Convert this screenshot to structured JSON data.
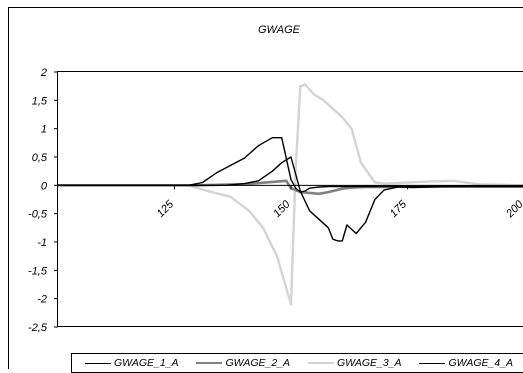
{
  "chart_data": {
    "type": "line",
    "title": "GWAGE",
    "xlabel": "",
    "ylabel": "",
    "xlim": [
      100,
      200
    ],
    "ylim": [
      -2.5,
      2
    ],
    "y_ticks": [
      2,
      1.5,
      1,
      0.5,
      0,
      -0.5,
      -1,
      -1.5,
      -2,
      -2.5
    ],
    "y_tick_labels": [
      "2",
      "1,5",
      "1",
      "0,5",
      "0",
      "-0,5",
      "-1",
      "-1,5",
      "-2",
      "-2,5"
    ],
    "x_ticks": [
      125,
      150,
      175,
      200
    ],
    "x_tick_labels": [
      "125",
      "150",
      "175",
      "200"
    ],
    "grid": false,
    "legend_position": "bottom",
    "series": [
      {
        "name": "GWAGE_1_A",
        "color": "#000000",
        "x": [
          100,
          128,
          131,
          134,
          137,
          140,
          143,
          146,
          148,
          150,
          151,
          152,
          153,
          154,
          156,
          158,
          160,
          163,
          166,
          170,
          175,
          185,
          200
        ],
        "y": [
          0,
          0,
          0.05,
          0.22,
          0.35,
          0.48,
          0.7,
          0.84,
          0.84,
          0.1,
          -0.05,
          -0.12,
          -0.1,
          -0.05,
          -0.03,
          -0.02,
          -0.02,
          -0.02,
          -0.02,
          -0.02,
          -0.02,
          -0.02,
          -0.02
        ]
      },
      {
        "name": "GWAGE_2_A",
        "color": "#808080",
        "x": [
          100,
          130,
          140,
          143,
          146,
          149,
          150,
          152,
          156,
          158,
          161,
          163,
          166,
          170,
          175,
          185,
          200
        ],
        "y": [
          0,
          0,
          0.02,
          0.04,
          0.06,
          0.08,
          -0.05,
          -0.12,
          -0.15,
          -0.12,
          -0.06,
          -0.04,
          -0.03,
          -0.03,
          -0.02,
          -0.02,
          -0.02
        ]
      },
      {
        "name": "GWAGE_3_A",
        "color": "#d4d4d4",
        "x": [
          100,
          128,
          130,
          133,
          137,
          141,
          144,
          147,
          150,
          151,
          152,
          153,
          155,
          157,
          159,
          161,
          163,
          165,
          168,
          170,
          175,
          180,
          185,
          190,
          200
        ],
        "y": [
          0,
          0,
          -0.05,
          -0.12,
          -0.2,
          -0.45,
          -0.75,
          -1.25,
          -2.1,
          0.3,
          1.75,
          1.78,
          1.6,
          1.5,
          1.35,
          1.2,
          1.0,
          0.4,
          0.05,
          0.03,
          0.05,
          0.07,
          0.08,
          0.02,
          0.0
        ]
      },
      {
        "name": "GWAGE_4_A",
        "color": "#000000",
        "x": [
          100,
          136,
          140,
          143,
          146,
          148,
          150,
          152,
          154,
          156,
          158,
          159,
          160,
          161,
          162,
          164,
          166,
          168,
          170,
          173,
          176,
          180,
          185,
          200
        ],
        "y": [
          0,
          0,
          0.03,
          0.08,
          0.25,
          0.4,
          0.5,
          -0.1,
          -0.45,
          -0.6,
          -0.75,
          -0.95,
          -0.98,
          -0.98,
          -0.7,
          -0.85,
          -0.65,
          -0.25,
          -0.08,
          -0.03,
          -0.04,
          -0.03,
          -0.02,
          -0.02
        ]
      }
    ]
  }
}
